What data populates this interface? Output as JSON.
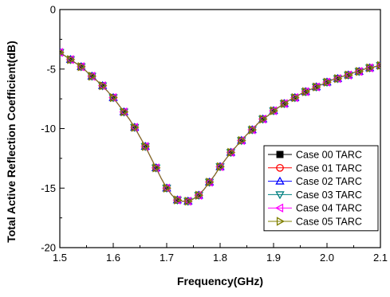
{
  "chart_data": {
    "type": "line",
    "title": "",
    "xlabel": "Frequency(GHz)",
    "ylabel": "Total Active Reflection Coefficient(dB)",
    "xlim": [
      1.5,
      2.1
    ],
    "ylim": [
      -20,
      0
    ],
    "xticks": [
      "1.5",
      "1.6",
      "1.7",
      "1.8",
      "1.9",
      "2.0",
      "2.1"
    ],
    "yticks": [
      "0",
      "-5",
      "-10",
      "-15",
      "-20"
    ],
    "grid": false,
    "legend_position": "lower-right",
    "x": [
      1.5,
      1.51,
      1.52,
      1.53,
      1.54,
      1.55,
      1.56,
      1.57,
      1.58,
      1.59,
      1.6,
      1.61,
      1.62,
      1.63,
      1.64,
      1.65,
      1.66,
      1.67,
      1.68,
      1.69,
      1.7,
      1.71,
      1.72,
      1.73,
      1.74,
      1.75,
      1.76,
      1.77,
      1.78,
      1.79,
      1.8,
      1.81,
      1.82,
      1.83,
      1.84,
      1.85,
      1.86,
      1.87,
      1.88,
      1.89,
      1.9,
      1.91,
      1.92,
      1.93,
      1.94,
      1.95,
      1.96,
      1.97,
      1.98,
      1.99,
      2.0,
      2.01,
      2.02,
      2.03,
      2.04,
      2.05,
      2.06,
      2.07,
      2.08,
      2.09,
      2.1
    ],
    "series": [
      {
        "name": "Case 00 TARC",
        "color": "#000000",
        "marker": "square-filled",
        "values": [
          -3.6,
          -3.9,
          -4.2,
          -4.5,
          -4.8,
          -5.2,
          -5.6,
          -6.0,
          -6.4,
          -6.9,
          -7.4,
          -8.0,
          -8.6,
          -9.2,
          -9.9,
          -10.7,
          -11.5,
          -12.4,
          -13.3,
          -14.2,
          -15.0,
          -15.6,
          -16.0,
          -16.1,
          -16.1,
          -15.9,
          -15.6,
          -15.1,
          -14.5,
          -13.9,
          -13.2,
          -12.6,
          -12.0,
          -11.5,
          -11.0,
          -10.5,
          -10.1,
          -9.6,
          -9.2,
          -8.9,
          -8.5,
          -8.2,
          -7.9,
          -7.6,
          -7.4,
          -7.1,
          -6.9,
          -6.7,
          -6.5,
          -6.3,
          -6.1,
          -5.9,
          -5.8,
          -5.6,
          -5.5,
          -5.3,
          -5.2,
          -5.0,
          -4.9,
          -4.8,
          -4.7
        ]
      },
      {
        "name": "Case 01 TARC",
        "color": "#ff0000",
        "marker": "circle-open",
        "values": [
          -3.6,
          -3.9,
          -4.2,
          -4.5,
          -4.8,
          -5.2,
          -5.6,
          -6.0,
          -6.4,
          -6.9,
          -7.4,
          -8.0,
          -8.6,
          -9.2,
          -9.9,
          -10.7,
          -11.5,
          -12.4,
          -13.3,
          -14.2,
          -15.0,
          -15.6,
          -16.0,
          -16.1,
          -16.1,
          -15.9,
          -15.6,
          -15.1,
          -14.5,
          -13.9,
          -13.2,
          -12.6,
          -12.0,
          -11.5,
          -11.0,
          -10.5,
          -10.1,
          -9.6,
          -9.2,
          -8.9,
          -8.5,
          -8.2,
          -7.9,
          -7.6,
          -7.4,
          -7.1,
          -6.9,
          -6.7,
          -6.5,
          -6.3,
          -6.1,
          -5.9,
          -5.8,
          -5.6,
          -5.5,
          -5.3,
          -5.2,
          -5.0,
          -4.9,
          -4.8,
          -4.7
        ]
      },
      {
        "name": "Case 02 TARC",
        "color": "#0000ff",
        "marker": "triangle-up-open",
        "values": [
          -3.6,
          -3.9,
          -4.2,
          -4.5,
          -4.8,
          -5.2,
          -5.6,
          -6.0,
          -6.4,
          -6.9,
          -7.4,
          -8.0,
          -8.6,
          -9.2,
          -9.9,
          -10.7,
          -11.5,
          -12.4,
          -13.3,
          -14.2,
          -15.0,
          -15.6,
          -16.0,
          -16.1,
          -16.1,
          -15.9,
          -15.6,
          -15.1,
          -14.5,
          -13.9,
          -13.2,
          -12.6,
          -12.0,
          -11.5,
          -11.0,
          -10.5,
          -10.1,
          -9.6,
          -9.2,
          -8.9,
          -8.5,
          -8.2,
          -7.9,
          -7.6,
          -7.4,
          -7.1,
          -6.9,
          -6.7,
          -6.5,
          -6.3,
          -6.1,
          -5.9,
          -5.8,
          -5.6,
          -5.5,
          -5.3,
          -5.2,
          -5.0,
          -4.9,
          -4.8,
          -4.7
        ]
      },
      {
        "name": "Case 03 TARC",
        "color": "#008080",
        "marker": "triangle-down-open",
        "values": [
          -3.6,
          -3.9,
          -4.2,
          -4.5,
          -4.8,
          -5.2,
          -5.6,
          -6.0,
          -6.4,
          -6.9,
          -7.4,
          -8.0,
          -8.6,
          -9.2,
          -9.9,
          -10.7,
          -11.5,
          -12.4,
          -13.3,
          -14.2,
          -15.0,
          -15.6,
          -16.0,
          -16.1,
          -16.1,
          -15.9,
          -15.6,
          -15.1,
          -14.5,
          -13.9,
          -13.2,
          -12.6,
          -12.0,
          -11.5,
          -11.0,
          -10.5,
          -10.1,
          -9.6,
          -9.2,
          -8.9,
          -8.5,
          -8.2,
          -7.9,
          -7.6,
          -7.4,
          -7.1,
          -6.9,
          -6.7,
          -6.5,
          -6.3,
          -6.1,
          -5.9,
          -5.8,
          -5.6,
          -5.5,
          -5.3,
          -5.2,
          -5.0,
          -4.9,
          -4.8,
          -4.7
        ]
      },
      {
        "name": "Case 04 TARC",
        "color": "#ff00ff",
        "marker": "triangle-left-open",
        "values": [
          -3.6,
          -3.9,
          -4.2,
          -4.5,
          -4.8,
          -5.2,
          -5.6,
          -6.0,
          -6.4,
          -6.9,
          -7.4,
          -8.0,
          -8.6,
          -9.2,
          -9.9,
          -10.7,
          -11.5,
          -12.4,
          -13.3,
          -14.2,
          -15.0,
          -15.6,
          -16.0,
          -16.1,
          -16.1,
          -15.9,
          -15.6,
          -15.1,
          -14.5,
          -13.9,
          -13.2,
          -12.6,
          -12.0,
          -11.5,
          -11.0,
          -10.5,
          -10.1,
          -9.6,
          -9.2,
          -8.9,
          -8.5,
          -8.2,
          -7.9,
          -7.6,
          -7.4,
          -7.1,
          -6.9,
          -6.7,
          -6.5,
          -6.3,
          -6.1,
          -5.9,
          -5.8,
          -5.6,
          -5.5,
          -5.3,
          -5.2,
          -5.0,
          -4.9,
          -4.8,
          -4.7
        ]
      },
      {
        "name": "Case 05 TARC",
        "color": "#808000",
        "marker": "triangle-right-open",
        "values": [
          -3.6,
          -3.9,
          -4.2,
          -4.5,
          -4.8,
          -5.2,
          -5.6,
          -6.0,
          -6.4,
          -6.9,
          -7.4,
          -8.0,
          -8.6,
          -9.2,
          -9.9,
          -10.7,
          -11.5,
          -12.4,
          -13.3,
          -14.2,
          -15.0,
          -15.6,
          -16.0,
          -16.1,
          -16.1,
          -15.9,
          -15.6,
          -15.1,
          -14.5,
          -13.9,
          -13.2,
          -12.6,
          -12.0,
          -11.5,
          -11.0,
          -10.5,
          -10.1,
          -9.6,
          -9.2,
          -8.9,
          -8.5,
          -8.2,
          -7.9,
          -7.6,
          -7.4,
          -7.1,
          -6.9,
          -6.7,
          -6.5,
          -6.3,
          -6.1,
          -5.9,
          -5.8,
          -5.6,
          -5.5,
          -5.3,
          -5.2,
          -5.0,
          -4.9,
          -4.8,
          -4.7
        ]
      }
    ]
  }
}
